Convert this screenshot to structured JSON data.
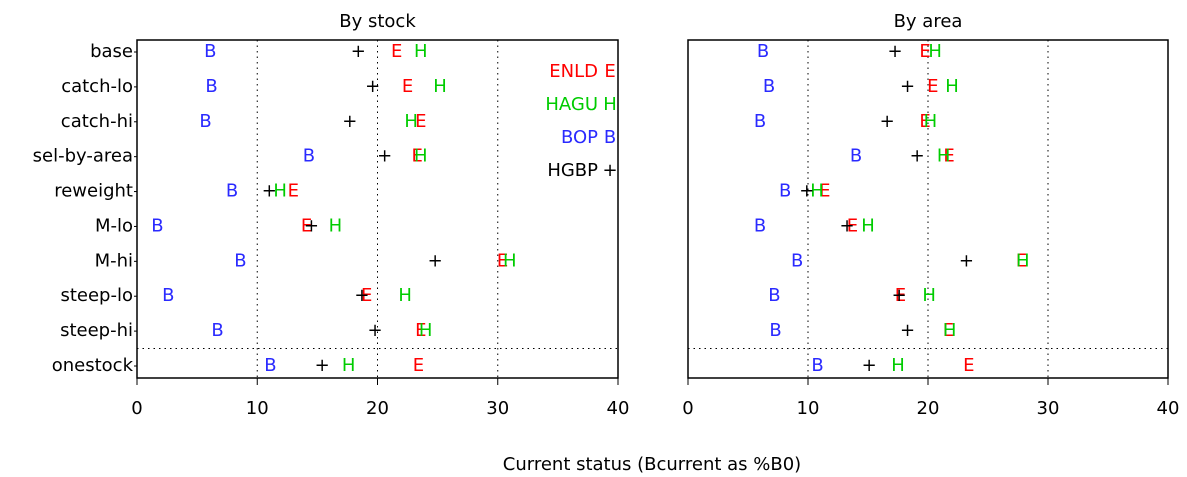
{
  "chart_data": [
    {
      "type": "dot",
      "title": "By stock",
      "categories": [
        "base",
        "catch-lo",
        "catch-hi",
        "sel-by-area",
        "reweight",
        "M-lo",
        "M-hi",
        "steep-lo",
        "steep-hi",
        "onestock"
      ],
      "series": [
        {
          "name": "ENLD",
          "symbol": "E",
          "color": "#ff0000",
          "values": [
            21.6,
            22.5,
            23.6,
            23.3,
            13.0,
            14.1,
            30.4,
            19.1,
            23.6,
            23.4
          ]
        },
        {
          "name": "HAGU",
          "symbol": "H",
          "color": "#00cc00",
          "values": [
            23.6,
            25.2,
            22.8,
            23.6,
            11.9,
            16.5,
            31.0,
            22.3,
            24.0,
            17.6
          ]
        },
        {
          "name": "BOP",
          "symbol": "B",
          "color": "#2a2aff",
          "values": [
            6.1,
            6.2,
            5.7,
            14.3,
            7.9,
            1.7,
            8.6,
            2.6,
            6.7,
            11.1
          ]
        },
        {
          "name": "HGBP",
          "symbol": "+",
          "color": "#000000",
          "values": [
            18.4,
            19.6,
            17.7,
            20.6,
            11.0,
            14.5,
            24.8,
            18.7,
            19.8,
            15.4
          ]
        }
      ],
      "xlim": [
        0,
        40
      ],
      "xticks": [
        0,
        10,
        20,
        30,
        40
      ],
      "grid": true,
      "legend": "top-right",
      "xlabel": "Current status (Bcurrent as %B0)"
    },
    {
      "type": "dot",
      "title": "By area",
      "series": [
        {
          "color": "#ff0000",
          "symbol": "E",
          "values": [
            19.75,
            20.4,
            19.75,
            21.75,
            11.4,
            13.7,
            27.8,
            17.7,
            21.7,
            23.4
          ]
        },
        {
          "color": "#00cc00",
          "symbol": "H",
          "values": [
            20.6,
            22.0,
            20.2,
            21.3,
            10.75,
            15.0,
            27.9,
            20.1,
            21.8,
            17.5
          ]
        },
        {
          "color": "#2a2aff",
          "symbol": "B",
          "values": [
            6.25,
            6.75,
            6.0,
            14.0,
            8.1,
            6.0,
            9.1,
            7.2,
            7.3,
            10.8
          ]
        },
        {
          "color": "#000000",
          "symbol": "+",
          "values": [
            17.25,
            18.3,
            16.6,
            19.1,
            9.9,
            13.25,
            23.2,
            17.6,
            18.3,
            15.1
          ]
        }
      ],
      "xlim": [
        0,
        40
      ],
      "xticks": [
        0,
        10,
        20,
        30,
        40
      ],
      "grid": true
    }
  ]
}
